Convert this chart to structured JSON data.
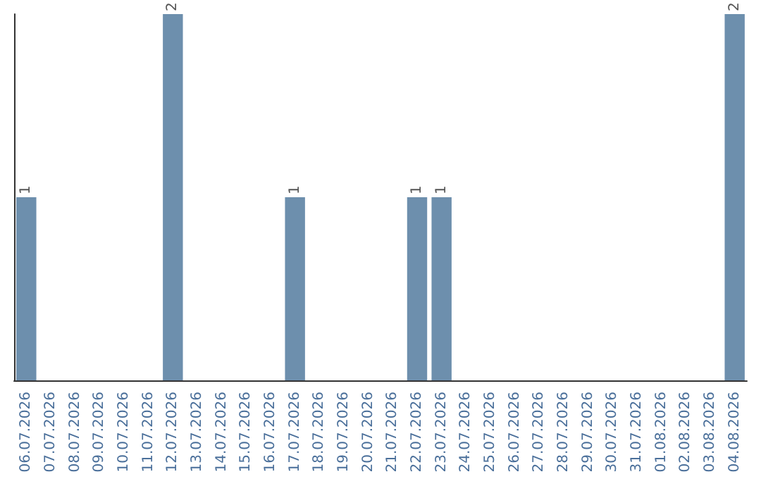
{
  "chart_data": {
    "type": "bar",
    "categories": [
      "06.07.2026",
      "07.07.2026",
      "08.07.2026",
      "09.07.2026",
      "10.07.2026",
      "11.07.2026",
      "12.07.2026",
      "13.07.2026",
      "14.07.2026",
      "15.07.2026",
      "16.07.2026",
      "17.07.2026",
      "18.07.2026",
      "19.07.2026",
      "20.07.2026",
      "21.07.2026",
      "22.07.2026",
      "23.07.2026",
      "24.07.2026",
      "25.07.2026",
      "26.07.2026",
      "27.07.2026",
      "28.07.2026",
      "29.07.2026",
      "30.07.2026",
      "31.07.2026",
      "01.08.2026",
      "02.08.2026",
      "03.08.2026",
      "04.08.2026"
    ],
    "values": [
      1,
      0,
      0,
      0,
      0,
      0,
      2,
      0,
      0,
      0,
      0,
      1,
      0,
      0,
      0,
      0,
      1,
      1,
      0,
      0,
      0,
      0,
      0,
      0,
      0,
      0,
      0,
      0,
      0,
      2
    ],
    "value_labels": [
      "1",
      null,
      null,
      null,
      null,
      null,
      "2",
      null,
      null,
      null,
      null,
      "1",
      null,
      null,
      null,
      null,
      "1",
      "1",
      null,
      null,
      null,
      null,
      null,
      null,
      null,
      null,
      null,
      null,
      null,
      "2"
    ],
    "color": "#6d8fad"
  }
}
